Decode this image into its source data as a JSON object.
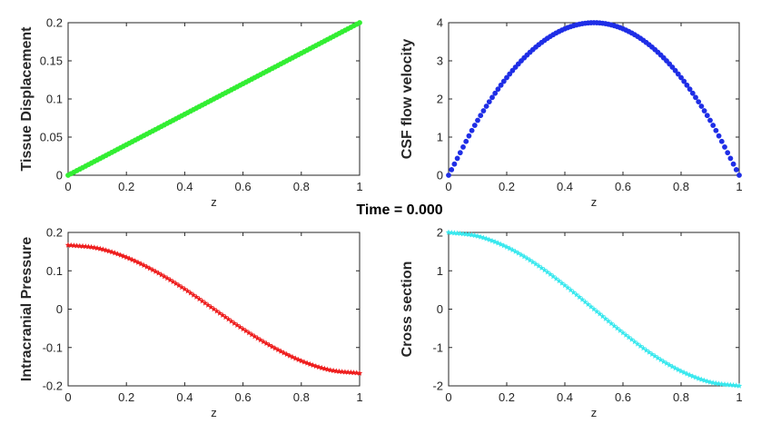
{
  "figure": {
    "title": "Time = 0.000"
  },
  "chart_data": [
    {
      "type": "scatter",
      "title": "",
      "xlabel": "z",
      "ylabel": "Tissue Displacement",
      "xlim": [
        0,
        1
      ],
      "ylim": [
        0,
        0.2
      ],
      "xticks": [
        "0",
        "0.2",
        "0.4",
        "0.6",
        "0.8",
        "1"
      ],
      "yticks": [
        "0",
        "0.05",
        "0.1",
        "0.15",
        "0.2"
      ],
      "grid": false,
      "color": "#33ee33",
      "marker": "circle",
      "series": [
        {
          "x": [
            0,
            0.1,
            0.2,
            0.3,
            0.4,
            0.5,
            0.6,
            0.7,
            0.8,
            0.9,
            1.0
          ],
          "y": [
            0,
            0.02,
            0.04,
            0.06,
            0.08,
            0.1,
            0.12,
            0.14,
            0.16,
            0.18,
            0.2
          ]
        }
      ]
    },
    {
      "type": "scatter",
      "title": "",
      "xlabel": "z",
      "ylabel": "CSF flow velocity",
      "xlim": [
        0,
        1
      ],
      "ylim": [
        0,
        4
      ],
      "xticks": [
        "0",
        "0.2",
        "0.4",
        "0.6",
        "0.8",
        "1"
      ],
      "yticks": [
        "0",
        "1",
        "2",
        "3",
        "4"
      ],
      "grid": false,
      "color": "#1f2ee6",
      "marker": "circle",
      "series": [
        {
          "x": [
            0,
            0.1,
            0.2,
            0.3,
            0.4,
            0.5,
            0.6,
            0.7,
            0.8,
            0.9,
            1.0
          ],
          "y": [
            0,
            1.44,
            2.56,
            3.36,
            3.84,
            4.0,
            3.84,
            3.36,
            2.56,
            1.44,
            0
          ]
        }
      ]
    },
    {
      "type": "scatter",
      "title": "",
      "xlabel": "z",
      "ylabel": "Intracranial Pressure",
      "xlim": [
        0,
        1
      ],
      "ylim": [
        -0.2,
        0.2
      ],
      "xticks": [
        "0",
        "0.2",
        "0.4",
        "0.6",
        "0.8",
        "1"
      ],
      "yticks": [
        "-0.2",
        "-0.1",
        "0",
        "0.1",
        "0.2"
      ],
      "grid": false,
      "color": "#ee1c1c",
      "marker": "star",
      "series": [
        {
          "x": [
            0,
            0.1,
            0.2,
            0.3,
            0.4,
            0.5,
            0.6,
            0.7,
            0.8,
            0.9,
            1.0
          ],
          "y": [
            0.167,
            0.159,
            0.135,
            0.098,
            0.052,
            0.0,
            -0.052,
            -0.098,
            -0.135,
            -0.159,
            -0.167
          ]
        }
      ]
    },
    {
      "type": "scatter",
      "title": "",
      "xlabel": "z",
      "ylabel": "Cross section",
      "xlim": [
        0,
        1
      ],
      "ylim": [
        -2,
        2
      ],
      "xticks": [
        "0",
        "0.2",
        "0.4",
        "0.6",
        "0.8",
        "1"
      ],
      "yticks": [
        "-2",
        "-1",
        "0",
        "1",
        "2"
      ],
      "grid": false,
      "color": "#38e8ee",
      "marker": "star",
      "series": [
        {
          "x": [
            0,
            0.1,
            0.2,
            0.3,
            0.4,
            0.5,
            0.6,
            0.7,
            0.8,
            0.9,
            1.0
          ],
          "y": [
            2.0,
            1.902,
            1.618,
            1.176,
            0.618,
            0.0,
            -0.618,
            -1.176,
            -1.618,
            -1.902,
            -2.0
          ]
        }
      ]
    }
  ]
}
